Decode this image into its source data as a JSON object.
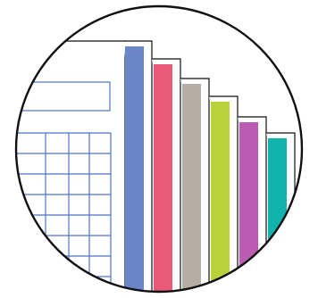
{
  "icon": {
    "name": "spreadsheet-bar-chart-icon",
    "colors": {
      "outline": "#111111",
      "background": "#ffffff",
      "grid_line": "#4f72c9",
      "bar_blue": "#6b86c8",
      "bar_red": "#e85a78",
      "bar_gray": "#b5aea6",
      "bar_lime": "#b9d23a",
      "bar_purple": "#bb5bb3",
      "bar_teal": "#12b2ad"
    },
    "bars": [
      {
        "name": "bar-blue",
        "color_key": "bar_blue"
      },
      {
        "name": "bar-red",
        "color_key": "bar_red"
      },
      {
        "name": "bar-gray",
        "color_key": "bar_gray"
      },
      {
        "name": "bar-lime",
        "color_key": "bar_lime"
      },
      {
        "name": "bar-purple",
        "color_key": "bar_purple"
      },
      {
        "name": "bar-teal",
        "color_key": "bar_teal"
      }
    ]
  }
}
